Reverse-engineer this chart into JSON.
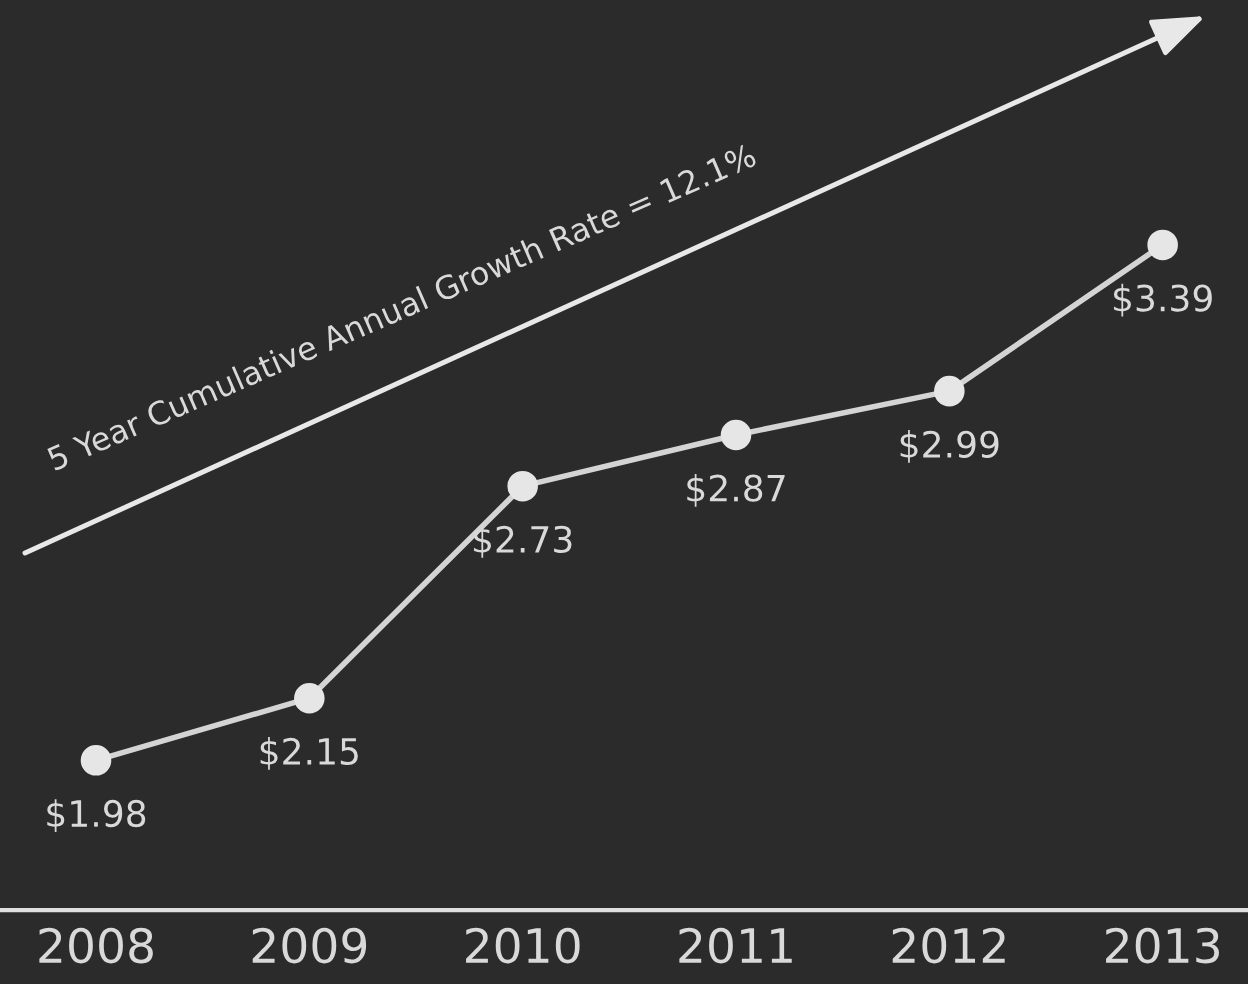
{
  "chart_data": {
    "type": "line",
    "categories": [
      "2008",
      "2009",
      "2010",
      "2011",
      "2012",
      "2013"
    ],
    "series": [
      {
        "color": "#d4d4d4",
        "values": [
          1.98,
          2.15,
          2.73,
          2.87,
          2.99,
          3.39
        ],
        "value_labels": [
          "$1.98",
          "$2.15",
          "$2.73",
          "$2.87",
          "$2.99",
          "$3.39"
        ]
      }
    ],
    "ylim": [
      1.57,
      4.06
    ],
    "marker": "circle",
    "annotations": [
      "5 Year Cumulative Annual Growth Rate = 12.1%"
    ]
  }
}
